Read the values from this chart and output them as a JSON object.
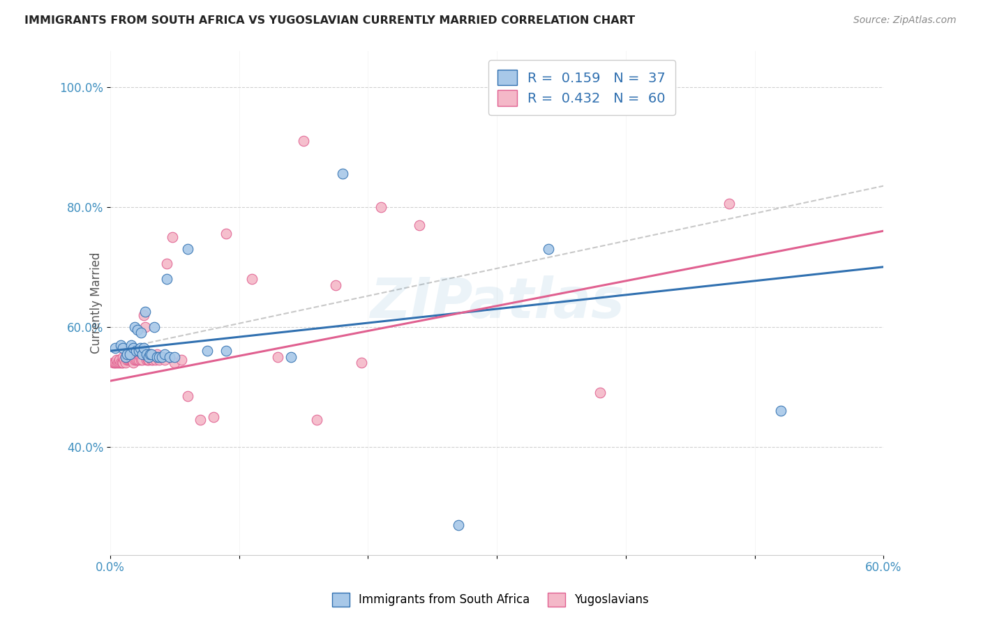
{
  "title": "IMMIGRANTS FROM SOUTH AFRICA VS YUGOSLAVIAN CURRENTLY MARRIED CORRELATION CHART",
  "source": "Source: ZipAtlas.com",
  "ylabel": "Currently Married",
  "xlim": [
    0.0,
    0.6
  ],
  "ylim": [
    0.22,
    1.06
  ],
  "xtick_vals": [
    0.0,
    0.1,
    0.2,
    0.3,
    0.4,
    0.5,
    0.6
  ],
  "xtick_labels_show": [
    "0.0%",
    "",
    "",
    "",
    "",
    "",
    "60.0%"
  ],
  "ytick_vals": [
    0.4,
    0.6,
    0.8,
    1.0
  ],
  "ytick_labels": [
    "40.0%",
    "60.0%",
    "80.0%",
    "100.0%"
  ],
  "color_blue": "#a8c8e8",
  "color_pink": "#f4b8c8",
  "color_blue_line": "#3070b0",
  "color_pink_line": "#e06090",
  "color_dashed": "#c8c8c8",
  "color_legend_text": "#3070b0",
  "color_tick": "#4090c0",
  "watermark": "ZIPatlas",
  "blue_R": "0.159",
  "blue_N": "37",
  "pink_R": "0.432",
  "pink_N": "60",
  "blue_scatter_x": [
    0.004,
    0.008,
    0.01,
    0.012,
    0.013,
    0.015,
    0.016,
    0.018,
    0.019,
    0.02,
    0.021,
    0.022,
    0.023,
    0.024,
    0.025,
    0.026,
    0.027,
    0.028,
    0.03,
    0.031,
    0.032,
    0.034,
    0.036,
    0.038,
    0.04,
    0.042,
    0.044,
    0.046,
    0.05,
    0.06,
    0.075,
    0.09,
    0.14,
    0.18,
    0.27,
    0.34,
    0.52
  ],
  "blue_scatter_y": [
    0.565,
    0.57,
    0.565,
    0.55,
    0.555,
    0.555,
    0.57,
    0.565,
    0.6,
    0.56,
    0.595,
    0.56,
    0.565,
    0.59,
    0.555,
    0.565,
    0.625,
    0.555,
    0.55,
    0.555,
    0.555,
    0.6,
    0.55,
    0.55,
    0.55,
    0.555,
    0.68,
    0.55,
    0.55,
    0.73,
    0.56,
    0.56,
    0.55,
    0.855,
    0.27,
    0.73,
    0.46
  ],
  "pink_scatter_x": [
    0.002,
    0.003,
    0.004,
    0.005,
    0.005,
    0.006,
    0.007,
    0.007,
    0.008,
    0.009,
    0.01,
    0.01,
    0.011,
    0.012,
    0.013,
    0.014,
    0.015,
    0.015,
    0.016,
    0.017,
    0.018,
    0.018,
    0.019,
    0.02,
    0.021,
    0.022,
    0.023,
    0.024,
    0.025,
    0.026,
    0.027,
    0.028,
    0.029,
    0.03,
    0.031,
    0.032,
    0.033,
    0.035,
    0.036,
    0.038,
    0.04,
    0.042,
    0.044,
    0.048,
    0.05,
    0.055,
    0.06,
    0.07,
    0.08,
    0.09,
    0.11,
    0.13,
    0.15,
    0.16,
    0.175,
    0.195,
    0.21,
    0.24,
    0.38,
    0.48
  ],
  "pink_scatter_y": [
    0.54,
    0.54,
    0.54,
    0.54,
    0.545,
    0.54,
    0.54,
    0.545,
    0.54,
    0.54,
    0.54,
    0.55,
    0.545,
    0.54,
    0.545,
    0.545,
    0.545,
    0.555,
    0.545,
    0.545,
    0.54,
    0.555,
    0.545,
    0.545,
    0.545,
    0.545,
    0.55,
    0.545,
    0.545,
    0.62,
    0.6,
    0.545,
    0.545,
    0.545,
    0.555,
    0.545,
    0.545,
    0.545,
    0.555,
    0.545,
    0.55,
    0.545,
    0.705,
    0.75,
    0.54,
    0.545,
    0.485,
    0.445,
    0.45,
    0.755,
    0.68,
    0.55,
    0.91,
    0.445,
    0.67,
    0.54,
    0.8,
    0.77,
    0.49,
    0.805
  ],
  "blue_line_x": [
    0.0,
    0.6
  ],
  "blue_line_y": [
    0.56,
    0.7
  ],
  "pink_line_x": [
    0.0,
    0.6
  ],
  "pink_line_y": [
    0.51,
    0.76
  ],
  "dashed_line_x": [
    0.0,
    0.6
  ],
  "dashed_line_y": [
    0.56,
    0.835
  ],
  "background_color": "#ffffff",
  "grid_color": "#d0d0d0"
}
